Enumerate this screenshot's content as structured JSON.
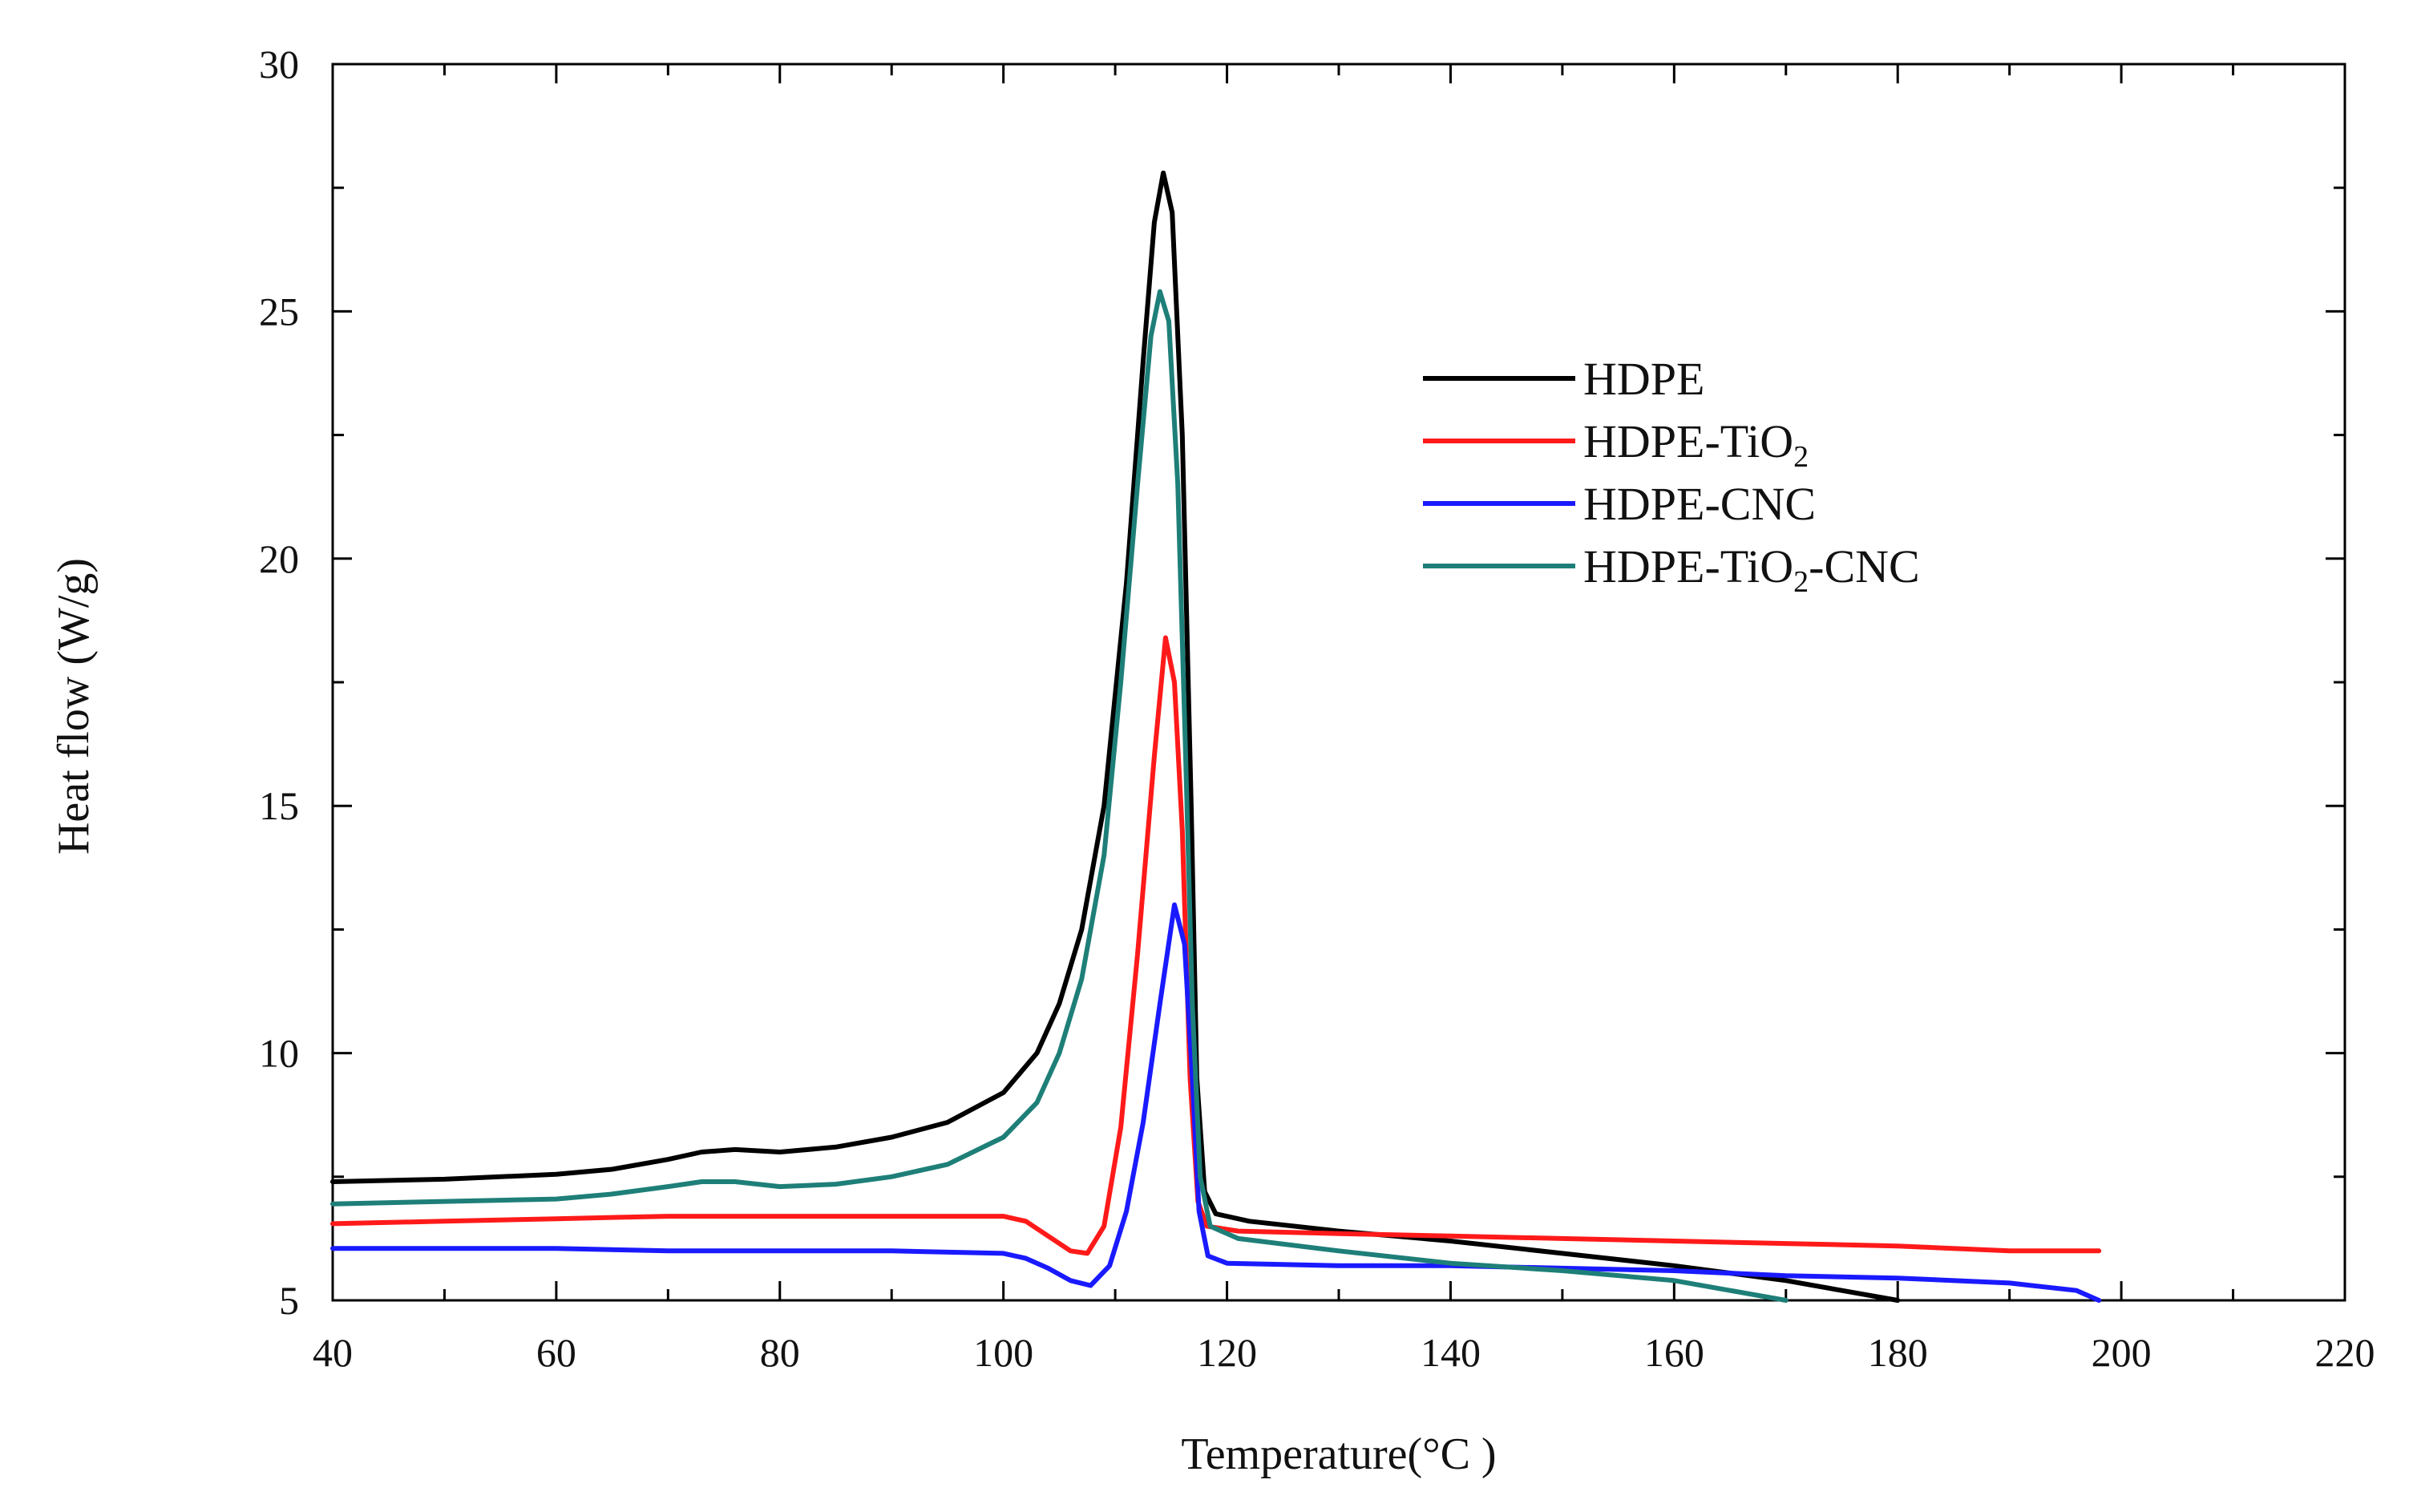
{
  "chart_data": {
    "type": "line",
    "title": "",
    "xlabel": "Temperature(°C )",
    "ylabel": "Heat flow (W/g)",
    "xlim": [
      40,
      220
    ],
    "ylim": [
      5,
      30
    ],
    "grid": false,
    "legend_position": "top-right",
    "x_ticks": [
      40,
      60,
      80,
      100,
      120,
      140,
      160,
      180,
      200,
      220
    ],
    "y_ticks": [
      5,
      10,
      15,
      20,
      25,
      30
    ],
    "x_tick_labels": [
      "40",
      "60",
      "80",
      "100",
      "120",
      "140",
      "160",
      "180",
      "200",
      "220"
    ],
    "y_tick_labels": [
      "5",
      "10",
      "15",
      "20",
      "25",
      "30"
    ],
    "series": [
      {
        "name": "HDPE",
        "legend": {
          "main": "HDPE",
          "sub": "",
          "tail": ""
        },
        "color": "#000000",
        "points": [
          [
            40,
            7.4
          ],
          [
            50,
            7.45
          ],
          [
            60,
            7.55
          ],
          [
            65,
            7.65
          ],
          [
            70,
            7.85
          ],
          [
            73,
            8.0
          ],
          [
            76,
            8.05
          ],
          [
            80,
            8.0
          ],
          [
            85,
            8.1
          ],
          [
            90,
            8.3
          ],
          [
            95,
            8.6
          ],
          [
            100,
            9.2
          ],
          [
            103,
            10.0
          ],
          [
            105,
            11.0
          ],
          [
            107,
            12.5
          ],
          [
            109,
            15.0
          ],
          [
            111,
            19.5
          ],
          [
            112.5,
            24.0
          ],
          [
            113.5,
            26.8
          ],
          [
            114.3,
            27.8
          ],
          [
            115.1,
            27.0
          ],
          [
            116,
            22.5
          ],
          [
            116.8,
            15.0
          ],
          [
            117.3,
            9.5
          ],
          [
            118,
            7.2
          ],
          [
            119,
            6.75
          ],
          [
            122,
            6.6
          ],
          [
            130,
            6.4
          ],
          [
            140,
            6.2
          ],
          [
            150,
            5.95
          ],
          [
            160,
            5.7
          ],
          [
            170,
            5.4
          ],
          [
            175,
            5.2
          ],
          [
            180,
            5.0
          ]
        ]
      },
      {
        "name": "HDPE-TiO2",
        "legend": {
          "main": "HDPE-TiO",
          "sub": "2",
          "tail": ""
        },
        "color": "#ff1a1a",
        "points": [
          [
            40,
            6.55
          ],
          [
            50,
            6.6
          ],
          [
            60,
            6.65
          ],
          [
            70,
            6.7
          ],
          [
            80,
            6.7
          ],
          [
            90,
            6.7
          ],
          [
            100,
            6.7
          ],
          [
            102,
            6.6
          ],
          [
            104,
            6.3
          ],
          [
            106,
            6.0
          ],
          [
            107.5,
            5.95
          ],
          [
            109,
            6.5
          ],
          [
            110.5,
            8.5
          ],
          [
            112,
            12.0
          ],
          [
            113.5,
            16.0
          ],
          [
            114.5,
            18.4
          ],
          [
            115.3,
            17.5
          ],
          [
            116,
            14.5
          ],
          [
            116.7,
            9.5
          ],
          [
            117.4,
            7.0
          ],
          [
            118.2,
            6.5
          ],
          [
            121,
            6.4
          ],
          [
            130,
            6.35
          ],
          [
            140,
            6.3
          ],
          [
            150,
            6.25
          ],
          [
            160,
            6.2
          ],
          [
            170,
            6.15
          ],
          [
            180,
            6.1
          ],
          [
            190,
            6.0
          ],
          [
            198,
            6.0
          ]
        ]
      },
      {
        "name": "HDPE-CNC",
        "legend": {
          "main": "HDPE-CNC",
          "sub": "",
          "tail": ""
        },
        "color": "#1a1aff",
        "points": [
          [
            40,
            6.05
          ],
          [
            50,
            6.05
          ],
          [
            60,
            6.05
          ],
          [
            70,
            6.0
          ],
          [
            80,
            6.0
          ],
          [
            90,
            6.0
          ],
          [
            100,
            5.95
          ],
          [
            102,
            5.85
          ],
          [
            104,
            5.65
          ],
          [
            106,
            5.4
          ],
          [
            107.8,
            5.3
          ],
          [
            109.5,
            5.7
          ],
          [
            111,
            6.8
          ],
          [
            112.5,
            8.6
          ],
          [
            114,
            11.0
          ],
          [
            115.3,
            13.0
          ],
          [
            116.2,
            12.2
          ],
          [
            116.9,
            9.5
          ],
          [
            117.5,
            6.8
          ],
          [
            118.3,
            5.9
          ],
          [
            120,
            5.75
          ],
          [
            130,
            5.7
          ],
          [
            140,
            5.7
          ],
          [
            150,
            5.65
          ],
          [
            160,
            5.6
          ],
          [
            170,
            5.5
          ],
          [
            180,
            5.45
          ],
          [
            190,
            5.35
          ],
          [
            196,
            5.2
          ],
          [
            198,
            5.0
          ]
        ]
      },
      {
        "name": "HDPE-TiO2-CNC",
        "legend": {
          "main": "HDPE-TiO",
          "sub": "2",
          "tail": "-CNC"
        },
        "color": "#1e7f78",
        "points": [
          [
            40,
            6.95
          ],
          [
            50,
            7.0
          ],
          [
            60,
            7.05
          ],
          [
            65,
            7.15
          ],
          [
            70,
            7.3
          ],
          [
            73,
            7.4
          ],
          [
            76,
            7.4
          ],
          [
            80,
            7.3
          ],
          [
            85,
            7.35
          ],
          [
            90,
            7.5
          ],
          [
            95,
            7.75
          ],
          [
            100,
            8.3
          ],
          [
            103,
            9.0
          ],
          [
            105,
            10.0
          ],
          [
            107,
            11.5
          ],
          [
            109,
            14.0
          ],
          [
            110.5,
            17.5
          ],
          [
            112,
            21.5
          ],
          [
            113.2,
            24.5
          ],
          [
            114,
            25.4
          ],
          [
            114.8,
            24.8
          ],
          [
            115.6,
            21.5
          ],
          [
            116.3,
            16.0
          ],
          [
            116.9,
            11.0
          ],
          [
            117.6,
            7.5
          ],
          [
            118.5,
            6.5
          ],
          [
            121,
            6.25
          ],
          [
            130,
            6.0
          ],
          [
            140,
            5.75
          ],
          [
            150,
            5.6
          ],
          [
            160,
            5.4
          ],
          [
            165,
            5.2
          ],
          [
            170,
            5.0
          ]
        ]
      }
    ]
  }
}
